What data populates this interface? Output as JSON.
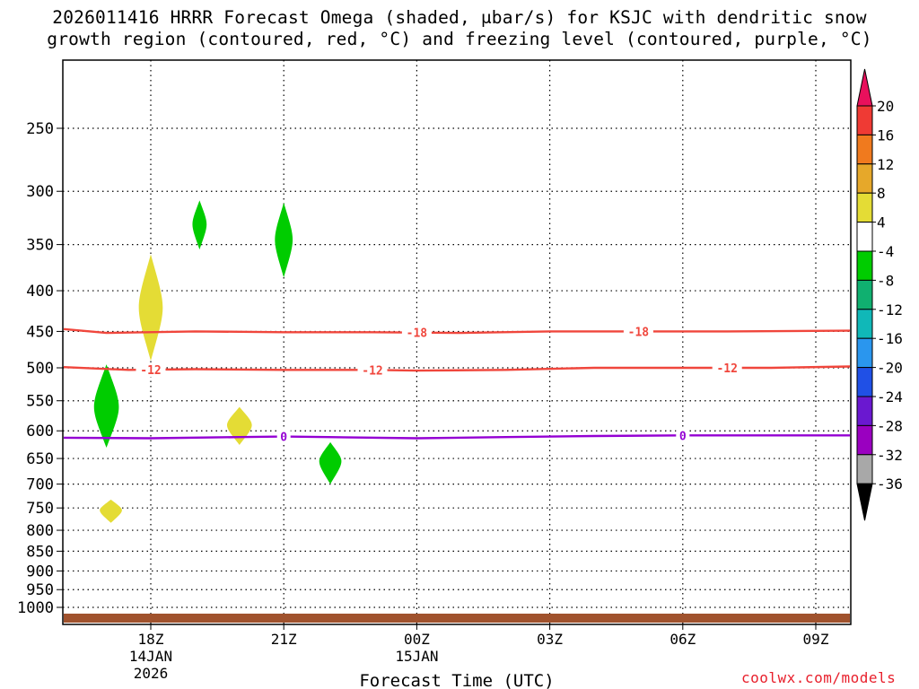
{
  "chart_data": {
    "type": "heatmap",
    "title_line1": "2026011416 HRRR Forecast Omega (shaded, μbar/s) for KSJC with dendritic snow",
    "title_line2": "growth region (contoured, red, °C) and freezing level (contoured, purple, °C)",
    "xlabel": "Forecast Time (UTC)",
    "ylabel": "",
    "x_range_hours_utc": [
      16,
      34
    ],
    "x_ticks": [
      {
        "hour": 18,
        "label": "18Z",
        "sub1": "14JAN",
        "sub2": "2026"
      },
      {
        "hour": 21,
        "label": "21Z",
        "sub1": "",
        "sub2": ""
      },
      {
        "hour": 24,
        "label": "00Z",
        "sub1": "15JAN",
        "sub2": ""
      },
      {
        "hour": 27,
        "label": "03Z",
        "sub1": "",
        "sub2": ""
      },
      {
        "hour": 30,
        "label": "06Z",
        "sub1": "",
        "sub2": ""
      },
      {
        "hour": 33,
        "label": "09Z",
        "sub1": "",
        "sub2": ""
      }
    ],
    "y_scale": "log-pressure",
    "y_range_hpa": [
      1040,
      200
    ],
    "y_ticks": [
      250,
      300,
      350,
      400,
      450,
      500,
      550,
      600,
      650,
      700,
      750,
      800,
      850,
      900,
      950,
      1000
    ],
    "grid": true,
    "surface_fill_color": "#a0522d",
    "contours": [
      {
        "name": "-18",
        "color": "#f0463c",
        "hours": [
          16,
          17,
          19,
          21,
          23,
          25,
          27,
          29,
          31,
          34
        ],
        "hpa": [
          447,
          452,
          450,
          451,
          451,
          452,
          450,
          450,
          450,
          449
        ],
        "label_hours": [
          24,
          29
        ]
      },
      {
        "name": "-12",
        "color": "#f0463c",
        "hours": [
          16,
          17.5,
          19,
          21,
          23,
          24,
          26,
          28,
          30,
          32,
          34
        ],
        "hpa": [
          499,
          503,
          502,
          503,
          503,
          504,
          503,
          500,
          500,
          500,
          498
        ],
        "label_hours": [
          18,
          23,
          31
        ]
      },
      {
        "name": "0",
        "color": "#9400d3",
        "hours": [
          16,
          18,
          20,
          21,
          22,
          24,
          26,
          28,
          30,
          34
        ],
        "hpa": [
          612,
          613,
          611,
          610,
          611,
          613,
          611,
          609,
          608,
          608
        ],
        "label_hours": [
          21,
          30
        ]
      }
    ],
    "omega_regions": [
      {
        "value": -6,
        "color": "#00cc00",
        "center_hour": 17.0,
        "center_hpa": 560,
        "half_width_h": 0.28,
        "top_hpa": 495,
        "bottom_hpa": 630
      },
      {
        "value": -6,
        "color": "#00cc00",
        "center_hour": 19.1,
        "center_hpa": 330,
        "half_width_h": 0.16,
        "top_hpa": 308,
        "bottom_hpa": 355
      },
      {
        "value": -6,
        "color": "#00cc00",
        "center_hour": 21.0,
        "center_hpa": 345,
        "half_width_h": 0.2,
        "top_hpa": 310,
        "bottom_hpa": 385
      },
      {
        "value": -6,
        "color": "#00cc00",
        "center_hour": 22.05,
        "center_hpa": 655,
        "half_width_h": 0.25,
        "top_hpa": 620,
        "bottom_hpa": 700
      },
      {
        "value": 6,
        "color": "#e4dc35",
        "center_hour": 18.0,
        "center_hpa": 420,
        "half_width_h": 0.27,
        "top_hpa": 360,
        "bottom_hpa": 490
      },
      {
        "value": 6,
        "color": "#e4dc35",
        "center_hour": 20.0,
        "center_hpa": 590,
        "half_width_h": 0.28,
        "top_hpa": 560,
        "bottom_hpa": 625
      },
      {
        "value": 6,
        "color": "#e4dc35",
        "center_hour": 17.1,
        "center_hpa": 755,
        "half_width_h": 0.25,
        "top_hpa": 732,
        "bottom_hpa": 783
      }
    ],
    "colorbar": {
      "labels": [
        "20",
        "16",
        "12",
        "8",
        "4",
        "-4",
        "-8",
        "-12",
        "-16",
        "-20",
        "-24",
        "-28",
        "-32",
        "-36"
      ],
      "colors": [
        "#e8105c",
        "#ef3a34",
        "#f07a1e",
        "#e6a82a",
        "#e4dc35",
        "#ffffff",
        "#00cc00",
        "#10b070",
        "#10b8b8",
        "#2a96ee",
        "#2050e6",
        "#6a18d0",
        "#9a00c0",
        "#a8a8a8",
        "#000000"
      ]
    }
  },
  "watermark": "coolwx.com/models"
}
